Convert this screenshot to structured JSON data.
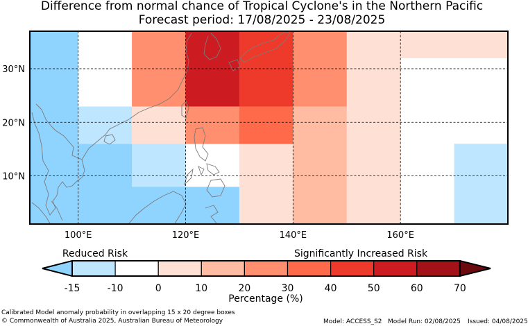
{
  "title": "Difference from normal chance of Tropical Cyclone's in the Northern Pacific",
  "subtitle": "Forecast period: 17/08/2025 - 23/08/2025",
  "map": {
    "lon_range": [
      91,
      180
    ],
    "lat_range": [
      1,
      37
    ],
    "lon_ticks": [
      "100°E",
      "120°E",
      "140°E",
      "160°E"
    ],
    "lat_ticks": [
      "30°N",
      "20°N",
      "10°N"
    ],
    "grid": true,
    "colors": {
      "-15": "#8fd3ff",
      "-10": "#bfe6ff",
      "0": "#ffffff",
      "10": "#ffe0d4",
      "20": "#ffbca3",
      "30": "#ff8f6f",
      "40": "#ff6a4a",
      "50": "#ee3a2b",
      "60": "#cc1c22",
      "70": "#a31219",
      "70+": "#6b0a0f"
    },
    "cells": [
      {
        "lon": [
          91,
          100
        ],
        "lat": [
          1,
          37
        ],
        "v": -15
      },
      {
        "lon": [
          100,
          110
        ],
        "lat": [
          1,
          16
        ],
        "v": -15
      },
      {
        "lon": [
          100,
          110
        ],
        "lat": [
          16,
          23
        ],
        "v": -10
      },
      {
        "lon": [
          100,
          110
        ],
        "lat": [
          23,
          37
        ],
        "v": 0
      },
      {
        "lon": [
          110,
          120
        ],
        "lat": [
          1,
          8
        ],
        "v": -15
      },
      {
        "lon": [
          110,
          120
        ],
        "lat": [
          8,
          16
        ],
        "v": -10
      },
      {
        "lon": [
          110,
          120
        ],
        "lat": [
          16,
          23
        ],
        "v": 10
      },
      {
        "lon": [
          110,
          120
        ],
        "lat": [
          23,
          37
        ],
        "v": 30
      },
      {
        "lon": [
          120,
          130
        ],
        "lat": [
          1,
          8
        ],
        "v": -15
      },
      {
        "lon": [
          120,
          130
        ],
        "lat": [
          8,
          16
        ],
        "v": 0
      },
      {
        "lon": [
          120,
          130
        ],
        "lat": [
          16,
          23
        ],
        "v": 30
      },
      {
        "lon": [
          120,
          130
        ],
        "lat": [
          23,
          37
        ],
        "v": 60
      },
      {
        "lon": [
          130,
          140
        ],
        "lat": [
          1,
          16
        ],
        "v": 10
      },
      {
        "lon": [
          130,
          140
        ],
        "lat": [
          16,
          23
        ],
        "v": 40
      },
      {
        "lon": [
          130,
          140
        ],
        "lat": [
          23,
          37
        ],
        "v": 50
      },
      {
        "lon": [
          140,
          150
        ],
        "lat": [
          1,
          23
        ],
        "v": 20
      },
      {
        "lon": [
          140,
          150
        ],
        "lat": [
          23,
          37
        ],
        "v": 30
      },
      {
        "lon": [
          150,
          160
        ],
        "lat": [
          1,
          37
        ],
        "v": 10
      },
      {
        "lon": [
          160,
          170
        ],
        "lat": [
          32,
          37
        ],
        "v": 10
      },
      {
        "lon": [
          170,
          180
        ],
        "lat": [
          32,
          37
        ],
        "v": 10
      },
      {
        "lon": [
          170,
          180
        ],
        "lat": [
          1,
          16
        ],
        "v": -10
      }
    ]
  },
  "legend": {
    "left_label": "Reduced Risk",
    "right_label": "Significantly Increased Risk",
    "ticks": [
      "-15",
      "-10",
      "0",
      "10",
      "20",
      "30",
      "40",
      "50",
      "60",
      "70"
    ],
    "xlabel": "Percentage (%)"
  },
  "footer": {
    "line1": "Calibrated Model anomaly probability in overlapping 15 x 20 degree boxes",
    "line2": "© Commonwealth of Australia 2025, Australian Bureau of Meteorology",
    "model": "Model: ACCESS_S2",
    "run": "Model Run: 02/08/2025",
    "issued": "Issued: 04/08/2025"
  }
}
